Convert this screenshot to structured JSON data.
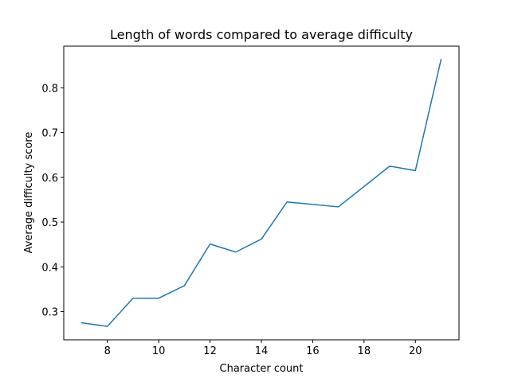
{
  "chart_data": {
    "type": "line",
    "title": "Length of words compared to average difficulty",
    "xlabel": "Character count",
    "ylabel": "Average difficulty score",
    "xlim": [
      6.3,
      21.7
    ],
    "ylim": [
      0.237,
      0.893
    ],
    "grid": false,
    "legend": "none",
    "x_ticks": [
      8,
      10,
      12,
      14,
      16,
      18,
      20
    ],
    "y_ticks": [
      0.3,
      0.4,
      0.5,
      0.6,
      0.7,
      0.8
    ],
    "x_tick_labels": [
      "8",
      "10",
      "12",
      "14",
      "16",
      "18",
      "20"
    ],
    "y_tick_labels": [
      "0.3",
      "0.4",
      "0.5",
      "0.6",
      "0.7",
      "0.8"
    ],
    "series": [
      {
        "color": "#1f77b4",
        "x": [
          7,
          8,
          9,
          10,
          11,
          12,
          13,
          14,
          15,
          17,
          19,
          20,
          21
        ],
        "y": [
          0.275,
          0.267,
          0.33,
          0.33,
          0.358,
          0.451,
          0.433,
          0.462,
          0.545,
          0.534,
          0.625,
          0.615,
          0.863
        ]
      }
    ]
  }
}
